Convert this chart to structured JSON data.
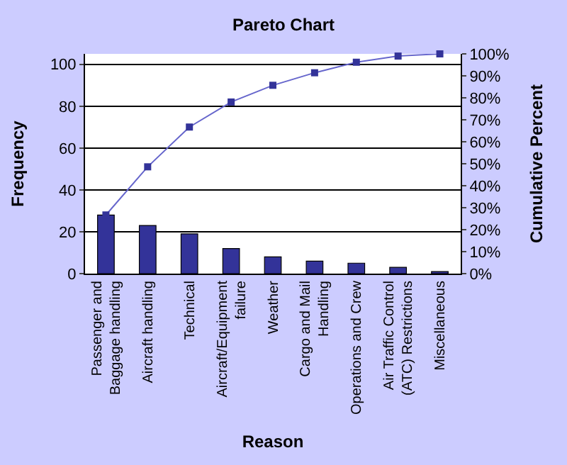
{
  "chart_data": {
    "type": "bar",
    "title": "Pareto Chart",
    "xlabel": "Reason",
    "ylabel": "Frequency",
    "y2label": "Cumulative Percent",
    "categories": [
      "Passenger and Baggage handling",
      "Aircraft handling",
      "Technical",
      "Aircraft/Equipment failure",
      "Weather",
      "Cargo and Mail Handling",
      "Operations and Crew",
      "Air Traffic Control (ATC) Restrictions",
      "Miscellaneous"
    ],
    "series": [
      {
        "color": "#333399",
        "values": [
          28,
          23,
          19,
          12,
          8,
          6,
          5,
          3,
          1
        ]
      },
      {
        "type": "line",
        "axis": "y2",
        "color": "#6666cc",
        "marker": "square",
        "values": [
          26.7,
          48.6,
          66.7,
          78.1,
          85.7,
          91.4,
          96.2,
          99.0,
          100
        ]
      }
    ],
    "ylim": [
      0,
      105
    ],
    "yticks": [
      0,
      20,
      40,
      60,
      80,
      100
    ],
    "y2lim": [
      0,
      100
    ],
    "y2ticks": [
      {
        "value": 0,
        "label": "0%"
      },
      {
        "value": 10,
        "label": "10%"
      },
      {
        "value": 20,
        "label": "20%"
      },
      {
        "value": 30,
        "label": "30%"
      },
      {
        "value": 40,
        "label": "40%"
      },
      {
        "value": 50,
        "label": "50%"
      },
      {
        "value": 60,
        "label": "60%"
      },
      {
        "value": 70,
        "label": "70%"
      },
      {
        "value": 80,
        "label": "80%"
      },
      {
        "value": 90,
        "label": "90%"
      },
      {
        "value": 100,
        "label": "100%"
      }
    ],
    "grid": "y"
  }
}
